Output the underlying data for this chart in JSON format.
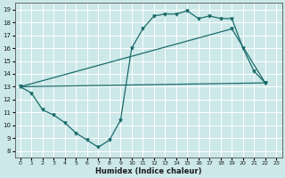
{
  "bg_color": "#cce8e8",
  "grid_color": "#ffffff",
  "line_color": "#1a6b6b",
  "xlabel": "Humidex (Indice chaleur)",
  "xlim": [
    -0.5,
    23.5
  ],
  "ylim": [
    7.5,
    19.5
  ],
  "xticks": [
    0,
    1,
    2,
    3,
    4,
    5,
    6,
    7,
    8,
    9,
    10,
    11,
    12,
    13,
    14,
    15,
    16,
    17,
    18,
    19,
    20,
    21,
    22,
    23
  ],
  "yticks": [
    8,
    9,
    10,
    11,
    12,
    13,
    14,
    15,
    16,
    17,
    18,
    19
  ],
  "curve1_x": [
    0,
    1,
    2,
    3,
    4,
    5,
    6,
    7,
    8,
    9,
    10,
    11,
    12,
    13,
    14,
    15,
    16,
    17,
    18,
    19,
    20,
    21,
    22
  ],
  "curve1_y": [
    13,
    12.5,
    11.2,
    10.8,
    10.2,
    9.4,
    8.85,
    8.3,
    8.85,
    10.4,
    16.0,
    17.5,
    18.5,
    18.65,
    18.65,
    18.9,
    18.3,
    18.5,
    18.3,
    18.3,
    16.0,
    14.2,
    13.3
  ],
  "curve2_x": [
    0,
    19,
    22
  ],
  "curve2_y": [
    13,
    17.5,
    13.3
  ],
  "curve3_x": [
    0,
    22
  ],
  "curve3_y": [
    13,
    13.3
  ]
}
